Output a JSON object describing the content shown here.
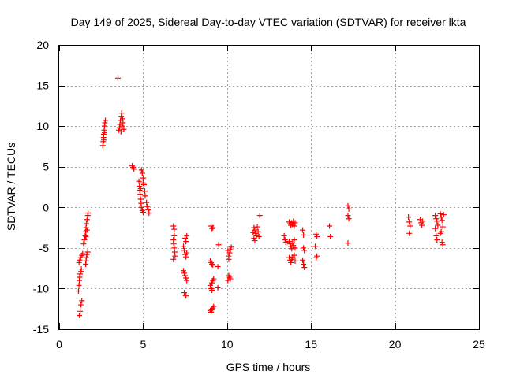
{
  "chart_data": {
    "type": "scatter",
    "title": "Day 149 of 2025, Sidereal Day-to-day VTEC variation (SDTVAR) for receiver lkta",
    "xlabel": "GPS time / hours",
    "ylabel": "SDTVAR / TECUs",
    "xlim": [
      0,
      25
    ],
    "ylim": [
      -15,
      20
    ],
    "x_ticks": [
      0,
      5,
      10,
      15,
      20,
      25
    ],
    "y_ticks": [
      -15,
      -10,
      -5,
      0,
      5,
      10,
      15,
      20
    ],
    "x_tick_labels": [
      "0",
      "5",
      "10",
      "15",
      "20",
      "25"
    ],
    "y_tick_labels": [
      "-15",
      "-10",
      "-5",
      "0",
      "5",
      "10",
      "15",
      "20"
    ],
    "grid": true,
    "marker": "+",
    "color": "#ff0000",
    "series": [
      {
        "name": "SDTVAR",
        "points": [
          [
            1.2,
            -13.3
          ],
          [
            1.25,
            -12.8
          ],
          [
            1.3,
            -12.0
          ],
          [
            1.35,
            -11.5
          ],
          [
            1.15,
            -10.3
          ],
          [
            1.18,
            -9.6
          ],
          [
            1.2,
            -9.0
          ],
          [
            1.22,
            -8.6
          ],
          [
            1.25,
            -8.2
          ],
          [
            1.3,
            -7.9
          ],
          [
            1.32,
            -7.6
          ],
          [
            1.18,
            -6.8
          ],
          [
            1.22,
            -6.5
          ],
          [
            1.28,
            -6.2
          ],
          [
            1.35,
            -5.9
          ],
          [
            1.4,
            -5.7
          ],
          [
            1.45,
            -4.5
          ],
          [
            1.5,
            -4.0
          ],
          [
            1.55,
            -3.5
          ],
          [
            1.58,
            -3.0
          ],
          [
            1.6,
            -2.5
          ],
          [
            1.62,
            -2.0
          ],
          [
            1.66,
            -1.5
          ],
          [
            1.7,
            -1.0
          ],
          [
            1.72,
            -0.7
          ],
          [
            1.58,
            -7.0
          ],
          [
            1.6,
            -6.6
          ],
          [
            1.62,
            -6.2
          ],
          [
            1.65,
            -5.8
          ],
          [
            1.7,
            -5.5
          ],
          [
            1.6,
            -3.6
          ],
          [
            1.66,
            -2.8
          ],
          [
            2.6,
            7.6
          ],
          [
            2.62,
            8.1
          ],
          [
            2.64,
            8.6
          ],
          [
            2.65,
            9.0
          ],
          [
            2.68,
            9.5
          ],
          [
            2.7,
            10.0
          ],
          [
            2.72,
            10.4
          ],
          [
            2.75,
            10.7
          ],
          [
            2.66,
            8.3
          ],
          [
            2.7,
            9.2
          ],
          [
            3.5,
            15.9
          ],
          [
            3.55,
            9.5
          ],
          [
            3.6,
            9.8
          ],
          [
            3.62,
            10.2
          ],
          [
            3.65,
            10.7
          ],
          [
            3.7,
            11.2
          ],
          [
            3.72,
            11.6
          ],
          [
            3.75,
            10.0
          ],
          [
            3.8,
            10.4
          ],
          [
            3.85,
            9.6
          ],
          [
            3.78,
            10.9
          ],
          [
            3.68,
            9.3
          ],
          [
            4.35,
            5.1
          ],
          [
            4.4,
            4.9
          ],
          [
            4.45,
            4.7
          ],
          [
            4.75,
            3.2
          ],
          [
            4.78,
            2.6
          ],
          [
            4.8,
            2.1
          ],
          [
            4.82,
            1.6
          ],
          [
            4.85,
            1.0
          ],
          [
            4.88,
            0.5
          ],
          [
            4.9,
            0.0
          ],
          [
            4.95,
            -0.4
          ],
          [
            5.0,
            -0.6
          ],
          [
            4.9,
            4.6
          ],
          [
            4.95,
            4.2
          ],
          [
            5.0,
            3.6
          ],
          [
            5.05,
            2.8
          ],
          [
            5.1,
            2.0
          ],
          [
            5.12,
            1.4
          ],
          [
            5.2,
            0.6
          ],
          [
            5.25,
            0.1
          ],
          [
            5.3,
            -0.3
          ],
          [
            5.35,
            -0.7
          ],
          [
            5.0,
            3.0
          ],
          [
            4.85,
            2.3
          ],
          [
            6.8,
            -2.3
          ],
          [
            6.85,
            -2.7
          ],
          [
            6.8,
            -4.0
          ],
          [
            6.82,
            -4.5
          ],
          [
            6.85,
            -5.0
          ],
          [
            6.88,
            -5.5
          ],
          [
            6.9,
            -6.0
          ],
          [
            6.8,
            -6.4
          ],
          [
            6.85,
            -3.5
          ],
          [
            7.4,
            -4.8
          ],
          [
            7.45,
            -5.3
          ],
          [
            7.5,
            -5.8
          ],
          [
            7.55,
            -6.1
          ],
          [
            7.6,
            -5.6
          ],
          [
            7.5,
            -3.8
          ],
          [
            7.55,
            -4.2
          ],
          [
            7.6,
            -3.5
          ],
          [
            7.4,
            -7.8
          ],
          [
            7.45,
            -8.1
          ],
          [
            7.5,
            -8.4
          ],
          [
            7.55,
            -8.7
          ],
          [
            7.6,
            -9.0
          ],
          [
            7.45,
            -10.5
          ],
          [
            7.5,
            -10.8
          ],
          [
            7.55,
            -10.9
          ],
          [
            9.0,
            -6.6
          ],
          [
            9.05,
            -6.8
          ],
          [
            9.1,
            -7.0
          ],
          [
            9.15,
            -7.1
          ],
          [
            9.0,
            -9.6
          ],
          [
            9.05,
            -10.0
          ],
          [
            9.1,
            -9.3
          ],
          [
            9.15,
            -9.0
          ],
          [
            9.2,
            -8.8
          ],
          [
            9.1,
            -10.2
          ],
          [
            9.0,
            -12.7
          ],
          [
            9.05,
            -12.9
          ],
          [
            9.1,
            -12.6
          ],
          [
            9.15,
            -12.4
          ],
          [
            9.2,
            -12.2
          ],
          [
            9.05,
            -2.3
          ],
          [
            9.1,
            -2.6
          ],
          [
            9.15,
            -2.5
          ],
          [
            9.45,
            -7.3
          ],
          [
            9.5,
            -4.6
          ],
          [
            9.45,
            -9.9
          ],
          [
            10.1,
            -6.0
          ],
          [
            10.15,
            -5.6
          ],
          [
            10.2,
            -5.2
          ],
          [
            10.25,
            -4.9
          ],
          [
            10.1,
            -6.4
          ],
          [
            10.05,
            -5.3
          ],
          [
            10.1,
            -8.4
          ],
          [
            10.15,
            -8.6
          ],
          [
            10.2,
            -8.8
          ],
          [
            10.05,
            -9.0
          ],
          [
            11.6,
            -2.5
          ],
          [
            11.65,
            -2.8
          ],
          [
            11.7,
            -3.2
          ],
          [
            11.75,
            -3.5
          ],
          [
            11.6,
            -3.8
          ],
          [
            11.65,
            -4.1
          ],
          [
            11.8,
            -2.4
          ],
          [
            11.85,
            -3.0
          ],
          [
            11.9,
            -3.6
          ],
          [
            11.95,
            -1.0
          ],
          [
            11.55,
            -3.1
          ],
          [
            13.4,
            -3.5
          ],
          [
            13.45,
            -4.0
          ],
          [
            13.5,
            -4.3
          ],
          [
            13.7,
            -1.8
          ],
          [
            13.75,
            -2.0
          ],
          [
            13.8,
            -2.2
          ],
          [
            13.85,
            -1.9
          ],
          [
            13.9,
            -2.1
          ],
          [
            13.95,
            -1.7
          ],
          [
            14.0,
            -2.3
          ],
          [
            14.05,
            -1.9
          ],
          [
            13.7,
            -4.2
          ],
          [
            13.75,
            -4.5
          ],
          [
            13.8,
            -4.8
          ],
          [
            13.85,
            -5.1
          ],
          [
            13.9,
            -4.4
          ],
          [
            13.95,
            -4.7
          ],
          [
            14.0,
            -4.0
          ],
          [
            14.05,
            -5.0
          ],
          [
            13.7,
            -6.2
          ],
          [
            13.75,
            -6.5
          ],
          [
            13.8,
            -6.8
          ],
          [
            13.85,
            -6.4
          ],
          [
            13.9,
            -6.1
          ],
          [
            14.0,
            -5.9
          ],
          [
            14.05,
            -6.6
          ],
          [
            14.5,
            -2.8
          ],
          [
            14.55,
            -3.4
          ],
          [
            14.55,
            -5.0
          ],
          [
            14.6,
            -5.3
          ],
          [
            14.5,
            -6.5
          ],
          [
            14.55,
            -7.0
          ],
          [
            14.6,
            -7.4
          ],
          [
            15.3,
            -3.3
          ],
          [
            15.35,
            -3.6
          ],
          [
            15.25,
            -4.8
          ],
          [
            15.3,
            -6.2
          ],
          [
            15.35,
            -6.0
          ],
          [
            16.1,
            -2.3
          ],
          [
            16.15,
            -3.6
          ],
          [
            17.2,
            0.2
          ],
          [
            17.25,
            -0.2
          ],
          [
            17.2,
            -1.0
          ],
          [
            17.25,
            -1.4
          ],
          [
            17.2,
            -4.4
          ],
          [
            20.8,
            -1.2
          ],
          [
            20.85,
            -1.8
          ],
          [
            20.9,
            -2.3
          ],
          [
            20.85,
            -3.2
          ],
          [
            21.5,
            -1.5
          ],
          [
            21.55,
            -1.9
          ],
          [
            21.6,
            -2.2
          ],
          [
            21.65,
            -1.7
          ],
          [
            22.4,
            -1.0
          ],
          [
            22.45,
            -1.4
          ],
          [
            22.5,
            -1.7
          ],
          [
            22.4,
            -2.6
          ],
          [
            22.45,
            -3.5
          ],
          [
            22.5,
            -4.0
          ],
          [
            22.55,
            -2.2
          ],
          [
            22.7,
            -0.8
          ],
          [
            22.75,
            -1.2
          ],
          [
            22.8,
            -1.6
          ],
          [
            22.85,
            -2.4
          ],
          [
            22.7,
            -3.2
          ],
          [
            22.75,
            -3.0
          ],
          [
            22.8,
            -4.3
          ],
          [
            22.85,
            -4.6
          ],
          [
            22.9,
            -0.9
          ]
        ]
      }
    ]
  }
}
